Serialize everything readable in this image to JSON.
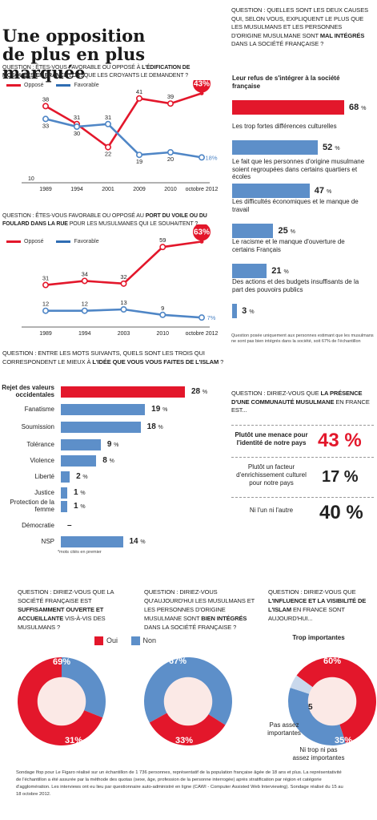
{
  "title_line1": "Une opposition",
  "title_line2": "de plus en plus marquée",
  "colors": {
    "red": "#e3172b",
    "blue": "#4f86c6",
    "lightblue": "#5d8fc9"
  },
  "chart_data": [
    {
      "type": "line",
      "question_prefix": "QUESTION : ÊTES-VOUS FAVORABLE OU OPPOSÉ À ",
      "question_bold": "L'ÉDIFICATION DE MOSQUÉES EN FRANCE",
      "question_suffix": " LORSQUE LES CROYANTS LE DEMANDENT ?",
      "x": [
        "1989",
        "1994",
        "2001",
        "2009",
        "2010",
        "octobre 2012"
      ],
      "ylim": [
        10,
        45
      ],
      "y_tick": "10",
      "series": [
        {
          "name": "Opposé",
          "values": [
            38,
            31,
            22,
            41,
            39,
            43
          ],
          "labels": [
            "38",
            "31",
            "22",
            "41",
            "39",
            "43%"
          ]
        },
        {
          "name": "Favorable",
          "values": [
            33,
            30,
            31,
            19,
            20,
            18
          ],
          "labels": [
            "33",
            "30",
            "31",
            "19",
            "20",
            "18%"
          ]
        }
      ]
    },
    {
      "type": "line",
      "question_prefix": "QUESTION : ÊTES-VOUS FAVORABLE OU OPPOSÉ AU ",
      "question_bold": "PORT DU VOILE OU DU FOULARD DANS LA RUE",
      "question_suffix": " POUR LES MUSULMANES QUI LE SOUHAITENT ?",
      "x": [
        "1989",
        "1994",
        "2003",
        "2010",
        "octobre 2012"
      ],
      "ylim": [
        0,
        65
      ],
      "series": [
        {
          "name": "Opposé",
          "values": [
            31,
            34,
            32,
            59,
            63
          ],
          "labels": [
            "31",
            "34",
            "32",
            "59",
            "63%"
          ]
        },
        {
          "name": "Favorable",
          "values": [
            12,
            12,
            13,
            9,
            7
          ],
          "labels": [
            "12",
            "12",
            "13",
            "9",
            "7%"
          ]
        }
      ]
    },
    {
      "type": "bar",
      "question_prefix": "QUESTION : QUELLES SONT LES DEUX CAUSES QUI, SELON VOUS, EXPLIQUENT LE PLUS QUE LES MUSULMANS ET LES PERSONNES D'ORIGINE MUSULMANE SONT ",
      "question_bold": "MAL INTÉGRÉS",
      "question_suffix": " DANS LA SOCIÉTÉ FRANÇAISE ?",
      "categories": [
        "Leur refus de s'intégrer à la société française",
        "Les trop fortes différences culturelles",
        "Le fait que les personnes d'origine musulmane soient regroupées dans certains quartiers et écoles",
        "Les difficultés économiques et le manque de travail",
        "Le racisme et le manque d'ouverture de certains Français",
        "Des actions et des budgets insuffisants de la part des pouvoirs publics"
      ],
      "values": [
        68,
        52,
        47,
        25,
        21,
        3
      ],
      "note": "Question posée uniquement aux personnes estimant que les musulmans ne sont pas bien intégrés dans la société, soit 67% de l'échantillon"
    },
    {
      "type": "bar",
      "question_prefix": "QUESTION : ENTRE LES MOTS SUIVANTS, QUELS SONT LES TROIS QUI CORRESPONDENT LE MIEUX À ",
      "question_bold": "L'IDÉE QUE VOUS VOUS FAITES DE L'ISLAM",
      "question_suffix": " ?",
      "categories": [
        "Rejet des valeurs occidentales",
        "Fanatisme",
        "Soumission",
        "Tolérance",
        "Violence",
        "Liberté",
        "Justice",
        "Protection de la femme",
        "Démocratie",
        "NSP"
      ],
      "values": [
        28,
        19,
        18,
        9,
        8,
        2,
        1,
        1,
        0,
        14
      ],
      "value_labels": [
        "28",
        "19",
        "18",
        "9",
        "8",
        "2",
        "1",
        "1",
        "–",
        "14"
      ],
      "footnote": "*mots cités en premier"
    },
    {
      "type": "table",
      "question_prefix": "QUESTION : DIRIEZ-VOUS QUE ",
      "question_bold": "LA PRÉSENCE D'UNE COMMUNAUTÉ MUSULMANE",
      "question_suffix": " EN FRANCE EST...",
      "categories": [
        "Plutôt une menace pour l'identité de notre pays",
        "Plutôt un facteur d'enrichissement culturel pour notre pays",
        "Ni l'un ni l'autre"
      ],
      "values": [
        43,
        17,
        40
      ]
    },
    {
      "type": "pie",
      "question_prefix": "QUESTION : DIRIEZ-VOUS QUE LA SOCIÉTÉ FRANÇAISE EST ",
      "question_bold": "SUFFISAMMENT OUVERTE ET ACCUEILLANTE",
      "question_suffix": " VIS-À-VIS DES MUSULMANS ?",
      "categories": [
        "Oui",
        "Non"
      ],
      "values": [
        69,
        31
      ]
    },
    {
      "type": "pie",
      "question_prefix": "QUESTION : DIRIEZ-VOUS QU'AUJOURD'HUI LES MUSULMANS ET LES PERSONNES D'ORIGINE MUSULMANE SONT ",
      "question_bold": "BIEN INTÉGRÉS",
      "question_suffix": " DANS LA SOCIÉTÉ FRANÇAISE ?",
      "categories": [
        "Oui",
        "Non"
      ],
      "values": [
        33,
        67
      ]
    },
    {
      "type": "pie",
      "question_prefix": "QUESTION : DIRIEZ-VOUS QUE ",
      "question_bold": "L'INFLUENCE ET LA VISIBILITÉ DE L'ISLAM",
      "question_suffix": " EN FRANCE SONT AUJOURD'HUI...",
      "categories": [
        "Trop importantes",
        "Ni trop ni pas assez importantes",
        "Pas assez importantes"
      ],
      "values": [
        60,
        35,
        5
      ]
    }
  ],
  "legend_oui": "Oui",
  "legend_non": "Non",
  "source": "Sondage Ifop pour Le Figaro réalisé sur un échantillon de 1 736 personnes, représentatif de la population française âgée de 18 ans et plus. La représentativité de l'échantillon a été assurée par la méthode des quotas (sexe, âge, profession de la personne interrogée) après stratification par région et catégorie d'agglomération. Les interviews ont eu lieu par questionnaire auto-administré en ligne (CAWI - Computer Assisted Web Interviewing). Sondage réalisé du 15 au 18 octobre 2012."
}
